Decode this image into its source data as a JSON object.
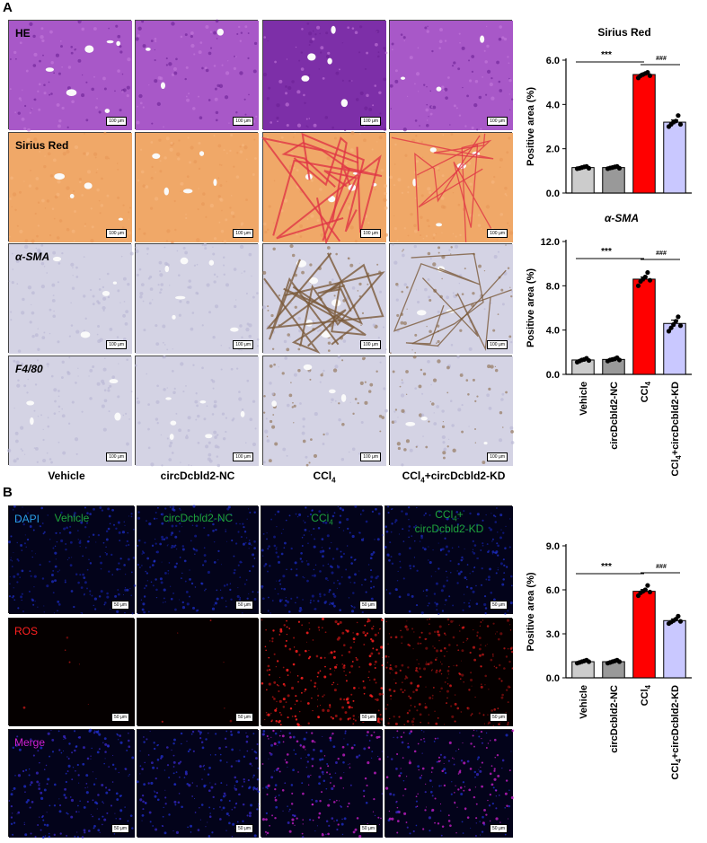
{
  "panel_a": {
    "letter": "A",
    "rows": [
      "HE",
      "Sirius Red",
      "α-SMA",
      "F4/80"
    ],
    "columns": [
      "Vehicle",
      "circDcbld2-NC",
      "CCl4",
      "CCl4+circDcbld2-KD"
    ],
    "scale_text": "100 μm"
  },
  "panel_b": {
    "letter": "B",
    "columns": [
      "Vehicle",
      "circDcbld2-NC",
      "CCl4",
      "CCl4+",
      "circDcbld2-KD"
    ],
    "rows": [
      "DAPI",
      "ROS",
      "Merge"
    ],
    "scale_text": "50 μm"
  },
  "colors": {
    "he": "#9b4fc0",
    "sirius_bg": "#f0a868",
    "fiber_red": "#e03545",
    "ihc_bg": "#d4d3e4",
    "ihc_brown": "#8a6a4a",
    "dapi": "#1a28b8",
    "ros": "#ff2020",
    "merge": "#d020d0",
    "label_green": "#1ea33c",
    "bar_vehicle": "#cccccc",
    "bar_nc": "#999999",
    "bar_ccl4": "#ff0000",
    "bar_kd": "#c9c8ff"
  },
  "chart_data": [
    {
      "type": "bar",
      "title": "Sirius Red",
      "ylabel": "Positive area (%)",
      "categories": [
        "Vehicle",
        "circDcbld2-NC",
        "CCl4",
        "CCl4+circDcbld2-KD"
      ],
      "values": [
        1.15,
        1.15,
        5.35,
        3.2
      ],
      "errors": [
        0.04,
        0.04,
        0.06,
        0.1
      ],
      "points": [
        [
          1.1,
          1.12,
          1.15,
          1.18,
          1.2,
          1.12
        ],
        [
          1.1,
          1.13,
          1.15,
          1.18,
          1.2,
          1.12
        ],
        [
          5.2,
          5.3,
          5.35,
          5.4,
          5.45,
          5.3
        ],
        [
          3.0,
          3.1,
          3.2,
          3.25,
          3.5,
          3.1
        ]
      ],
      "ylim": [
        0,
        6.0
      ],
      "yticks": [
        "0.0",
        "2.0",
        "4.0",
        "6.0"
      ],
      "annotations": [
        "***",
        "###"
      ]
    },
    {
      "type": "bar",
      "title": "α-SMA",
      "ylabel": "Positive area (%)",
      "categories": [
        "Vehicle",
        "circDcbld2-NC",
        "CCl4",
        "CCl4+circDcbld2-KD"
      ],
      "values": [
        1.3,
        1.35,
        8.6,
        4.6
      ],
      "errors": [
        0.08,
        0.08,
        0.2,
        0.3
      ],
      "points": [
        [
          1.1,
          1.2,
          1.3,
          1.35,
          1.45,
          1.25
        ],
        [
          1.2,
          1.3,
          1.35,
          1.4,
          1.5,
          1.3
        ],
        [
          8.0,
          8.4,
          8.6,
          8.8,
          9.2,
          8.5
        ],
        [
          3.9,
          4.2,
          4.5,
          4.8,
          5.2,
          4.4
        ]
      ],
      "ylim": [
        0,
        12.0
      ],
      "yticks": [
        "0.0",
        "4.0",
        "8.0",
        "12.0"
      ],
      "annotations": [
        "***",
        "###"
      ]
    },
    {
      "type": "bar",
      "title": "",
      "ylabel": "Positive area (%)",
      "categories": [
        "Vehicle",
        "circDcbld2-NC",
        "CCl4",
        "CCl4+circDcbld2-KD"
      ],
      "values": [
        1.1,
        1.1,
        5.9,
        3.9
      ],
      "errors": [
        0.05,
        0.05,
        0.12,
        0.12
      ],
      "points": [
        [
          1.0,
          1.05,
          1.1,
          1.15,
          1.2,
          1.1
        ],
        [
          1.0,
          1.05,
          1.1,
          1.15,
          1.2,
          1.1
        ],
        [
          5.6,
          5.8,
          5.9,
          6.0,
          6.3,
          5.85
        ],
        [
          3.7,
          3.8,
          3.9,
          4.0,
          4.2,
          3.85
        ]
      ],
      "ylim": [
        0,
        9.0
      ],
      "yticks": [
        "0.0",
        "3.0",
        "6.0",
        "9.0"
      ],
      "annotations": [
        "***",
        "###"
      ]
    }
  ],
  "x_labels": [
    "Vehicle",
    "circDcbld2-NC",
    "CCl4",
    "CCl4+circDcbld2-KD"
  ]
}
